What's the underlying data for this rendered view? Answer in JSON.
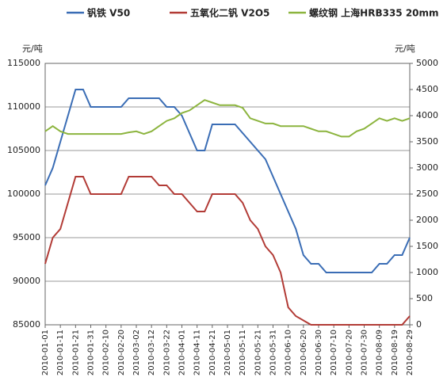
{
  "chart_data": {
    "type": "line",
    "y_label": "元/吨",
    "y2_label": "元/吨",
    "categories": [
      "2010-01-01",
      null,
      "2010-01-11",
      null,
      "2010-01-21",
      null,
      "2010-01-31",
      null,
      "2010-02-10",
      null,
      "2010-02-20",
      null,
      "2010-03-02",
      null,
      "2010-03-12",
      null,
      "2010-03-22",
      null,
      "2010-04-01",
      null,
      "2010-04-11",
      null,
      "2010-04-21",
      null,
      "2010-05-01",
      null,
      "2010-05-11",
      null,
      "2010-05-21",
      null,
      "2010-05-31",
      null,
      "2010-06-10",
      null,
      "2010-06-20",
      null,
      "2010-06-30",
      null,
      "2010-07-10",
      null,
      "2010-07-20",
      null,
      "2010-07-30",
      null,
      "2010-08-09",
      null,
      "2010-08-19",
      null,
      "2010-08-29"
    ],
    "series": [
      {
        "name": "钒铁 V50",
        "color": "#3a6db5",
        "values": [
          101000,
          103000,
          106000,
          109000,
          112000,
          112000,
          110000,
          110000,
          110000,
          110000,
          110000,
          111000,
          111000,
          111000,
          111000,
          111000,
          110000,
          110000,
          109000,
          107000,
          105000,
          105000,
          108000,
          108000,
          108000,
          108000,
          107000,
          106000,
          105000,
          104000,
          102000,
          100000,
          98000,
          96000,
          93000,
          92000,
          92000,
          91000,
          91000,
          91000,
          91000,
          91000,
          91000,
          91000,
          92000,
          92000,
          93000,
          93000,
          95000
        ]
      },
      {
        "name": "五氧化二钒 V2O5",
        "color": "#b23b36",
        "values": [
          92000,
          95000,
          96000,
          99000,
          102000,
          102000,
          100000,
          100000,
          100000,
          100000,
          100000,
          102000,
          102000,
          102000,
          102000,
          101000,
          101000,
          100000,
          100000,
          99000,
          98000,
          98000,
          100000,
          100000,
          100000,
          100000,
          99000,
          97000,
          96000,
          94000,
          93000,
          91000,
          87000,
          86000,
          85500,
          85000,
          85000,
          85000,
          85000,
          85000,
          85000,
          85000,
          85000,
          85000,
          85000,
          85000,
          85000,
          85000,
          86000
        ]
      },
      {
        "name": "螺纹钢 上海HRB335 20mm",
        "color": "#8cb43e",
        "axis": "y2",
        "values": [
          3700,
          3800,
          3700,
          3650,
          3650,
          3650,
          3650,
          3650,
          3650,
          3650,
          3650,
          3680,
          3700,
          3650,
          3700,
          3800,
          3900,
          3950,
          4050,
          4100,
          4200,
          4300,
          4250,
          4200,
          4200,
          4200,
          4150,
          3950,
          3900,
          3850,
          3850,
          3800,
          3800,
          3800,
          3800,
          3750,
          3700,
          3700,
          3650,
          3600,
          3600,
          3700,
          3750,
          3850,
          3950,
          3900,
          3950,
          3900,
          3950
        ]
      }
    ],
    "ylim": [
      85000,
      115000
    ],
    "yticks": [
      85000,
      90000,
      95000,
      100000,
      105000,
      110000,
      115000
    ],
    "y2lim": [
      0,
      5000
    ],
    "y2ticks": [
      0,
      500,
      1000,
      1500,
      2000,
      2500,
      3000,
      3500,
      4000,
      4500,
      5000
    ],
    "grid": true,
    "legend": "top"
  }
}
